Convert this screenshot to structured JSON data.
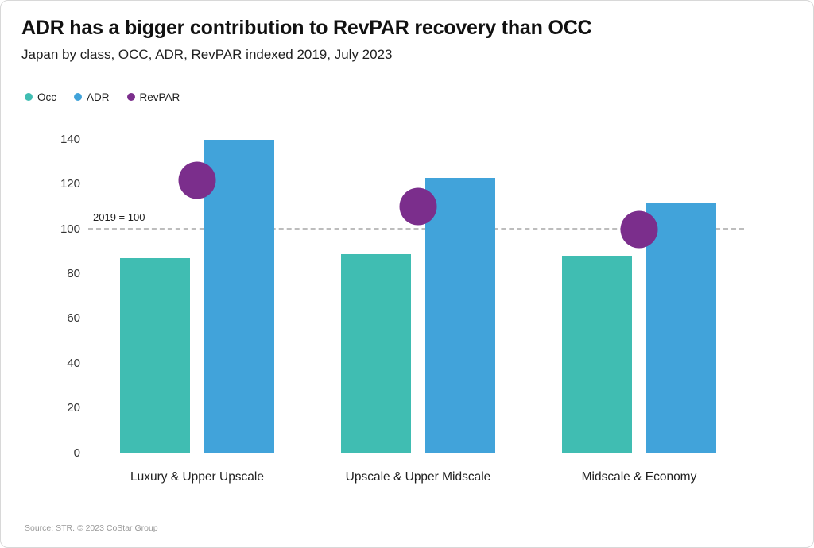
{
  "header": {
    "title": "ADR has a bigger contribution to RevPAR recovery than OCC",
    "subtitle": "Japan by class, OCC, ADR, RevPAR indexed 2019, July 2023"
  },
  "chart_data": {
    "type": "bar",
    "title": "ADR has a bigger contribution to RevPAR recovery than OCC",
    "subtitle": "Japan by class, OCC, ADR, RevPAR indexed 2019, July 2023",
    "categories": [
      "Luxury & Upper Upscale",
      "Upscale & Upper Midscale",
      "Midscale & Economy"
    ],
    "series": [
      {
        "name": "Occ",
        "type": "bar",
        "color": "#40bdb2",
        "values": [
          87,
          89,
          88
        ]
      },
      {
        "name": "ADR",
        "type": "bar",
        "color": "#41a3da",
        "values": [
          140,
          123,
          112
        ]
      },
      {
        "name": "RevPAR",
        "type": "point",
        "color": "#7b2e8c",
        "values": [
          122,
          110,
          100
        ]
      }
    ],
    "xlabel": "",
    "ylabel": "",
    "ylim": [
      0,
      140
    ],
    "yticks": [
      0,
      20,
      40,
      60,
      80,
      100,
      120,
      140
    ],
    "reference_line": {
      "value": 100,
      "label": "2019 = 100"
    },
    "grid": false,
    "legend_position": "top-left"
  },
  "footer": {
    "source": "Source: STR. © 2023 CoStar Group"
  }
}
